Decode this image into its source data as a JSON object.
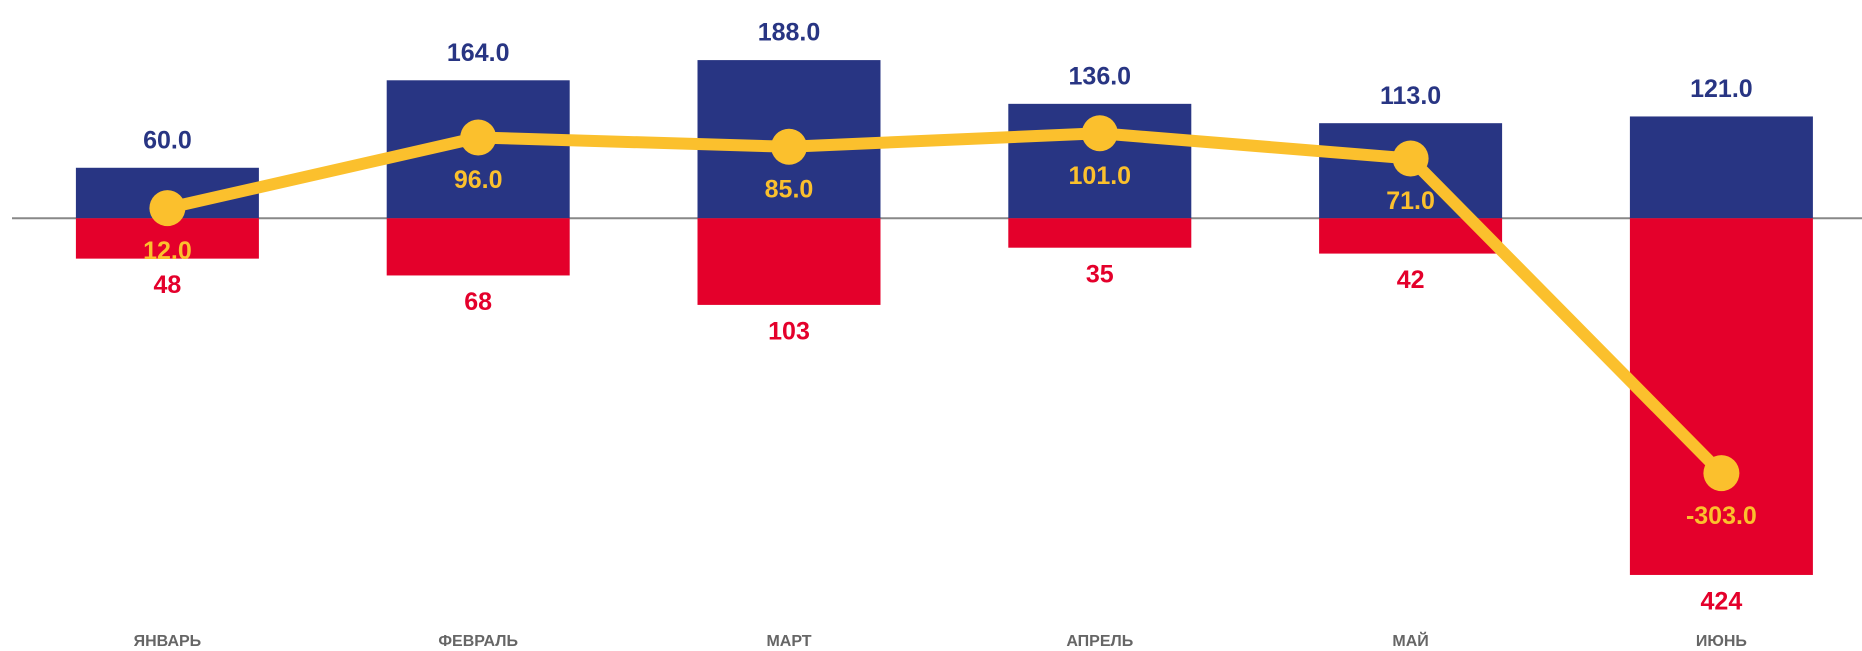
{
  "chart_data": {
    "type": "bar-line",
    "categories": [
      "ЯНВАРЬ",
      "ФЕВРАЛЬ",
      "МАРТ",
      "АПРЕЛЬ",
      "МАЙ",
      "ИЮНЬ"
    ],
    "ylim": [
      -430,
      200
    ],
    "series": [
      {
        "type": "bar",
        "color": "#283583",
        "values": [
          60,
          164,
          188,
          136,
          113,
          121
        ],
        "value_labels": [
          "60.0",
          "164.0",
          "188.0",
          "136.0",
          "113.0",
          "121.0"
        ]
      },
      {
        "type": "bar",
        "color": "#e4002b",
        "values": [
          -48,
          -68,
          -103,
          -35,
          -42,
          -424
        ],
        "value_labels": [
          "48",
          "68",
          "103",
          "35",
          "42",
          "424"
        ]
      },
      {
        "type": "line",
        "color": "#fbc02d",
        "values": [
          12,
          96,
          85,
          101,
          71,
          -303
        ],
        "value_labels": [
          "12.0",
          "96.0",
          "85.0",
          "101.0",
          "71.0",
          "-303.0"
        ]
      }
    ]
  }
}
